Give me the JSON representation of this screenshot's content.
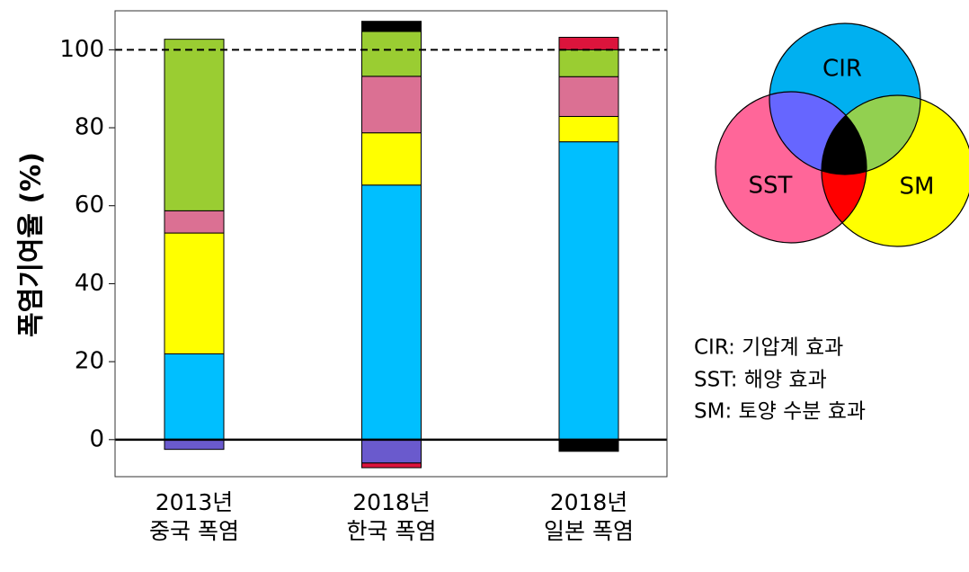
{
  "chart_data": {
    "type": "stacked_bar",
    "y_label": "폭염기여율 (%)",
    "categories": [
      [
        "2013년",
        "중국 폭염"
      ],
      [
        "2018년",
        "한국 폭염"
      ],
      [
        "2018년",
        "일본 폭염"
      ]
    ],
    "series": [
      {
        "name": "CIR",
        "color": "#00bfff",
        "values": [
          22,
          65.3,
          76.4
        ]
      },
      {
        "name": "SM",
        "color": "#ffff00",
        "values": [
          31,
          13.4,
          6.5
        ]
      },
      {
        "name": "SST",
        "color": "#db7093",
        "values": [
          5.7,
          14.5,
          10.2
        ]
      },
      {
        "color": "#9acd32",
        "values": [
          44,
          11.5,
          6.9
        ]
      },
      {
        "color": "#6a5acd",
        "values": [
          -2.5,
          -6,
          0
        ]
      },
      {
        "color": "#dc143c",
        "values": [
          0,
          -1.2,
          3.2
        ]
      },
      {
        "color": "#000000",
        "values": [
          0,
          2.6,
          -3
        ]
      }
    ],
    "ylim": [
      -9.5,
      110
    ],
    "yticks": [
      0,
      20,
      40,
      60,
      80,
      100
    ],
    "reference_line": 100,
    "annotations": [
      "CIR: 기압계 효과",
      "SST: 해양 효과",
      "SM: 토양 수분 효과"
    ]
  }
}
